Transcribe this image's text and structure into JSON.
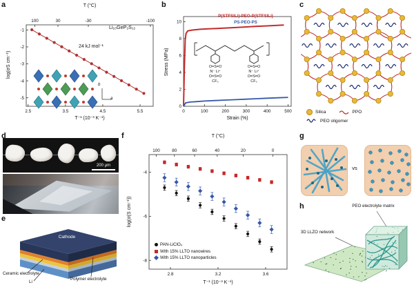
{
  "panels": {
    "a": "a",
    "b": "b",
    "c": "c",
    "d": "d",
    "e": "e",
    "f": "f",
    "g": "g",
    "h": "h"
  },
  "panel_a": {
    "compound": "Li₁₀GeP₂S₁₂",
    "inset_axes": [
      "b",
      "a"
    ]
  },
  "panel_b": {
    "substituents": [
      "O=S=O",
      "N⁻ Li⁺",
      "O=S=O",
      "CF₃"
    ]
  },
  "panel_c": {
    "legend": [
      {
        "label": "Silica",
        "color": "#e8b93a"
      },
      {
        "label": "PPO",
        "color": "#c23333"
      },
      {
        "label": "PEO oligomer",
        "color": "#1a2a6e"
      }
    ]
  },
  "panel_d": {
    "scale_bar": "200 μm"
  },
  "panel_e": {
    "labels": {
      "cathode": "Cathode",
      "ceramic": "Ceramic electrolyte",
      "polymer": "Polymer electrolyte",
      "li": "Li"
    }
  },
  "panel_g": {
    "vs_label": "vs"
  },
  "panel_h": {
    "peo_label": "PEO electrolyte matrix",
    "llzo_label": "3D LLZO network"
  },
  "chart_data": [
    {
      "id": "a",
      "type": "line",
      "xlabel": "T⁻¹ (10⁻³ K⁻¹)",
      "ylabel": "log(σS cm⁻¹)",
      "annotation": "24 kJ mol⁻¹",
      "xlim": [
        2.45,
        5.85
      ],
      "ylim": [
        -5.5,
        -0.7
      ],
      "xticks": [
        2.5,
        3.5,
        4.5,
        5.5
      ],
      "yticks": [
        -1,
        -2,
        -3,
        -4,
        -5
      ],
      "grid": false,
      "legend_position": "none",
      "top_axis": {
        "title": "T (°C)",
        "ticks": [
          {
            "label": "100",
            "x": 2.681
          },
          {
            "label": "30",
            "x": 3.3
          },
          {
            "label": "-30",
            "x": 4.113
          },
          {
            "label": "-100",
            "x": 5.776
          }
        ]
      },
      "series": [
        {
          "name": "Li₁₀GeP₂S₁₂",
          "color": "#b03232",
          "marker": "circle",
          "line": true,
          "lw": 1,
          "x": [
            2.6,
            2.8,
            3.0,
            3.2,
            3.4,
            3.6,
            3.8,
            4.0,
            4.2,
            4.4,
            4.6,
            4.8,
            5.0,
            5.2,
            5.4,
            5.6
          ],
          "y": [
            -0.99,
            -1.24,
            -1.49,
            -1.74,
            -1.99,
            -2.24,
            -2.49,
            -2.74,
            -2.99,
            -3.24,
            -3.49,
            -3.74,
            -3.99,
            -4.24,
            -4.49,
            -4.74
          ]
        }
      ]
    },
    {
      "id": "b",
      "type": "line",
      "xlabel": "Strain (%)",
      "ylabel": "Stress (MPa)",
      "xlim": [
        0,
        515
      ],
      "ylim": [
        0,
        10.6
      ],
      "xticks": [
        0,
        100,
        200,
        300,
        400,
        500
      ],
      "yticks": [
        0,
        2,
        4,
        6,
        8,
        10
      ],
      "grid": false,
      "legend_position": "top-center",
      "series": [
        {
          "name": "P(STFSILi)-PEO-P(STFSILi)",
          "color": "#c42a2a",
          "marker": "none",
          "line": true,
          "lw": 2,
          "x": [
            0,
            4,
            8,
            12,
            20,
            40,
            80,
            120,
            160,
            200,
            250,
            300,
            350,
            400,
            440,
            480
          ],
          "y": [
            0,
            4.5,
            7.8,
            8.6,
            8.9,
            9.0,
            9.1,
            9.15,
            9.2,
            9.25,
            9.3,
            9.38,
            9.45,
            9.5,
            9.55,
            9.6
          ]
        },
        {
          "name": "PS-PEO-PS",
          "color": "#3558a8",
          "marker": "none",
          "line": true,
          "lw": 1.8,
          "x": [
            0,
            10,
            30,
            60,
            100,
            150,
            200,
            250,
            300,
            350,
            400,
            450,
            500
          ],
          "y": [
            0,
            0.4,
            0.5,
            0.55,
            0.62,
            0.68,
            0.73,
            0.78,
            0.84,
            0.9,
            0.95,
            1.0,
            1.05
          ]
        }
      ]
    },
    {
      "id": "f",
      "type": "scatter",
      "xlabel": "T⁻¹ (10⁻³ K⁻¹)",
      "ylabel": "log(σ(S cm⁻¹))",
      "xlim": [
        2.62,
        3.78
      ],
      "ylim": [
        -8.4,
        -3.2
      ],
      "xticks": [
        2.8,
        3.2,
        3.6
      ],
      "yticks": [
        -4,
        -6,
        -8
      ],
      "grid": false,
      "legend_position": "lower-left",
      "top_axis": {
        "title": "T (°C)",
        "ticks": [
          {
            "label": "100",
            "x": 2.681
          },
          {
            "label": "80",
            "x": 2.833
          },
          {
            "label": "60",
            "x": 3.003
          },
          {
            "label": "40",
            "x": 3.193
          },
          {
            "label": "20",
            "x": 3.411
          },
          {
            "label": "0",
            "x": 3.661
          }
        ]
      },
      "series": [
        {
          "name": "PAN-LiClO₄",
          "color": "#111111",
          "marker": "circle",
          "line": false,
          "yerr": 0.12,
          "x": [
            2.75,
            2.85,
            2.95,
            3.05,
            3.15,
            3.25,
            3.35,
            3.45,
            3.55,
            3.65
          ],
          "y": [
            -4.7,
            -4.95,
            -5.2,
            -5.5,
            -5.8,
            -6.1,
            -6.45,
            -6.8,
            -7.15,
            -7.5
          ]
        },
        {
          "name": "With 15% LLTO nanowires",
          "color": "#c42a2a",
          "marker": "square",
          "line": false,
          "yerr": 0.07,
          "x": [
            2.75,
            2.85,
            2.95,
            3.05,
            3.15,
            3.25,
            3.35,
            3.45,
            3.55,
            3.65
          ],
          "y": [
            -3.55,
            -3.65,
            -3.75,
            -3.85,
            -3.95,
            -4.05,
            -4.15,
            -4.25,
            -4.35,
            -4.45
          ]
        },
        {
          "name": "With 15% LLTO nanoparticles",
          "color": "#3558a8",
          "marker": "diamond",
          "line": false,
          "yerr": 0.18,
          "x": [
            2.75,
            2.85,
            2.95,
            3.05,
            3.15,
            3.25,
            3.35,
            3.45,
            3.55,
            3.65
          ],
          "y": [
            -4.25,
            -4.45,
            -4.65,
            -4.85,
            -5.1,
            -5.35,
            -5.65,
            -5.95,
            -6.3,
            -6.6
          ]
        }
      ]
    }
  ]
}
